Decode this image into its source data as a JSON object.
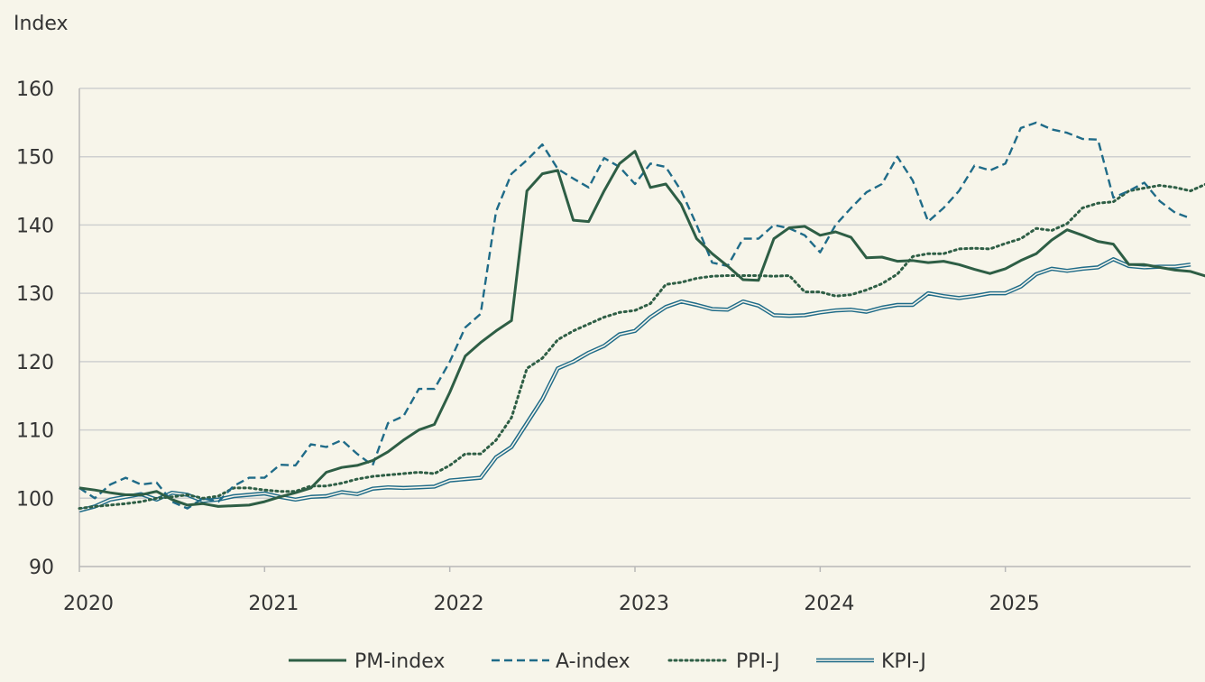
{
  "chart_data": {
    "type": "line",
    "title": "",
    "ylabel": "Index",
    "xlabel": "",
    "ylim": [
      90,
      160
    ],
    "yticks": [
      90,
      100,
      110,
      120,
      130,
      140,
      150,
      160
    ],
    "xlim": [
      2020,
      2026
    ],
    "xticks": [
      "2020",
      "2021",
      "2022",
      "2023",
      "2024",
      "2025"
    ],
    "grid": "horizontal",
    "legend_position": "bottom",
    "x_start": "2020-01",
    "x_frequency": "monthly",
    "series": [
      {
        "name": "PM-index",
        "style": "solid",
        "color": "#2e5e45",
        "values": [
          101.5,
          101.2,
          100.8,
          100.5,
          100.5,
          101.0,
          99.8,
          99.0,
          99.2,
          98.8,
          98.9,
          99.0,
          99.5,
          100.2,
          100.8,
          101.5,
          103.8,
          104.5,
          104.8,
          105.5,
          106.8,
          108.5,
          110.0,
          110.8,
          115.5,
          120.8,
          122.8,
          124.5,
          126.0,
          145.0,
          147.5,
          148.0,
          140.7,
          140.5,
          145.0,
          149.0,
          150.8,
          145.5,
          146.0,
          143.0,
          138.0,
          135.8,
          134.0,
          132.0,
          131.9,
          138.0,
          139.6,
          139.8,
          138.5,
          139.0,
          138.2,
          135.2,
          135.3,
          134.7,
          134.8,
          134.5,
          134.7,
          134.2,
          133.5,
          132.9,
          133.6,
          134.8,
          135.8,
          137.8,
          139.3,
          138.5,
          137.6,
          137.2,
          134.2,
          134.2,
          133.8,
          133.4,
          133.2,
          132.5,
          134.2,
          133.4
        ]
      },
      {
        "name": "A-index",
        "style": "dashed",
        "color": "#1f6b88",
        "values": [
          101.5,
          100.0,
          102.0,
          103.0,
          102.0,
          102.3,
          99.5,
          98.5,
          100.0,
          99.5,
          101.8,
          103.0,
          103.0,
          104.9,
          104.8,
          107.9,
          107.5,
          108.5,
          106.5,
          104.8,
          111.0,
          112.0,
          116.0,
          116.0,
          120.0,
          125.0,
          127.0,
          142.0,
          147.5,
          149.5,
          151.8,
          148.2,
          146.8,
          145.5,
          149.8,
          148.5,
          146.0,
          149.0,
          148.5,
          145.0,
          140.0,
          134.5,
          134.0,
          138.0,
          138.0,
          140.0,
          139.5,
          138.5,
          136.0,
          140.0,
          142.5,
          144.8,
          146.0,
          150.0,
          146.5,
          140.5,
          142.5,
          145.0,
          148.7,
          148.0,
          149.0,
          154.2,
          155.0,
          154.0,
          153.5,
          152.6,
          152.5,
          144.0,
          145.0,
          146.2,
          143.5,
          141.8,
          141.0
        ]
      },
      {
        "name": "PPI-J",
        "style": "dotted",
        "color": "#2e5e45",
        "values": [
          98.5,
          98.8,
          99.0,
          99.2,
          99.5,
          100.0,
          100.2,
          100.5,
          100.0,
          100.3,
          101.5,
          101.5,
          101.2,
          101.0,
          101.0,
          101.8,
          101.8,
          102.2,
          102.8,
          103.2,
          103.4,
          103.6,
          103.8,
          103.6,
          104.8,
          106.5,
          106.5,
          108.5,
          111.8,
          119.0,
          120.5,
          123.2,
          124.5,
          125.5,
          126.5,
          127.2,
          127.5,
          128.5,
          131.3,
          131.6,
          132.2,
          132.5,
          132.6,
          132.6,
          132.6,
          132.5,
          132.6,
          130.2,
          130.2,
          129.6,
          129.8,
          130.5,
          131.4,
          132.8,
          135.4,
          135.8,
          135.8,
          136.5,
          136.6,
          136.5,
          137.3,
          138.0,
          139.5,
          139.2,
          140.2,
          142.5,
          143.2,
          143.4,
          145.0,
          145.4,
          145.8,
          145.5,
          145.0,
          146.0,
          146.3,
          146.0
        ]
      },
      {
        "name": "KPI-J",
        "style": "double",
        "color": "#1f6b88",
        "values": [
          98.2,
          98.8,
          99.8,
          100.2,
          100.6,
          99.8,
          100.8,
          100.5,
          99.6,
          99.8,
          100.3,
          100.5,
          100.7,
          100.2,
          99.8,
          100.2,
          100.3,
          100.9,
          100.6,
          101.4,
          101.6,
          101.5,
          101.6,
          101.7,
          102.6,
          102.8,
          103.0,
          106.0,
          107.5,
          111.0,
          114.5,
          119.0,
          120.0,
          121.3,
          122.3,
          124.0,
          124.5,
          126.5,
          128.0,
          128.8,
          128.3,
          127.7,
          127.6,
          128.8,
          128.2,
          126.8,
          126.7,
          126.8,
          127.2,
          127.5,
          127.6,
          127.3,
          127.9,
          128.3,
          128.3,
          130.0,
          129.6,
          129.3,
          129.6,
          130.0,
          130.0,
          131.0,
          132.8,
          133.6,
          133.3,
          133.6,
          133.8,
          135.0,
          134.0,
          133.8,
          133.9,
          133.9,
          134.2
        ]
      }
    ]
  }
}
